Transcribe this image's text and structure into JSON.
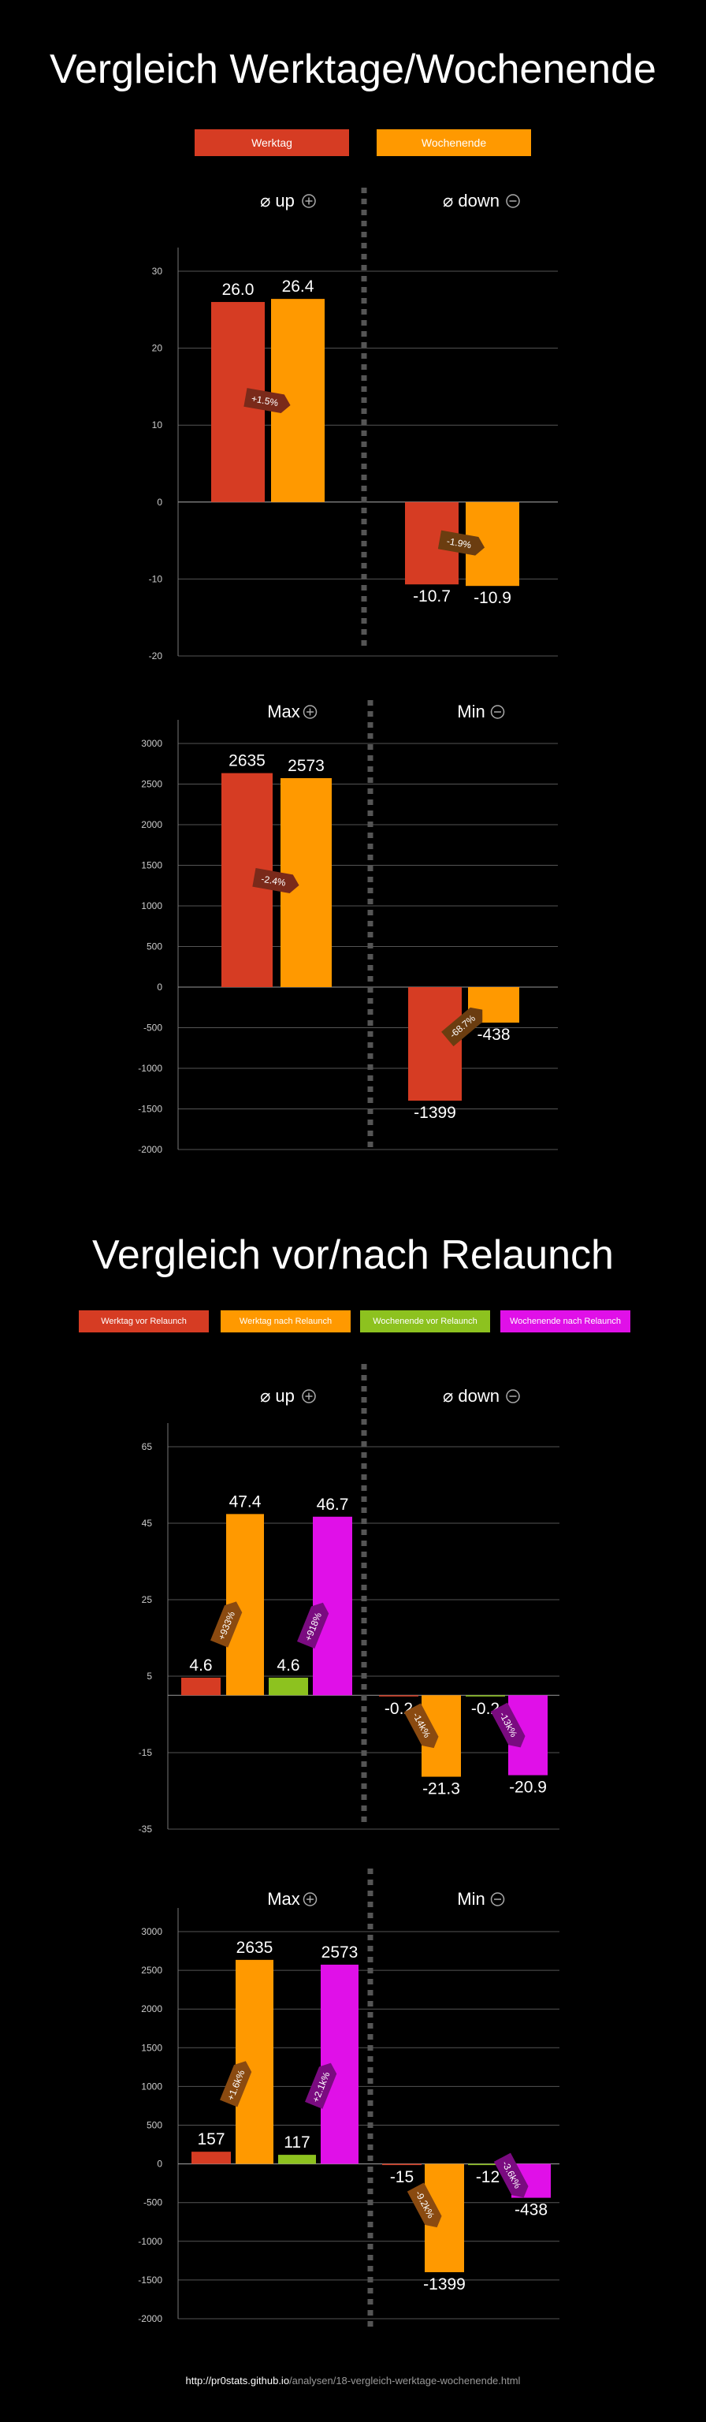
{
  "section1": {
    "title": "Vergleich Werktage/Wochenende",
    "legend": [
      {
        "label": "Werktag",
        "color": "#d63c23"
      },
      {
        "label": "Wochenende",
        "color": "#ff9900"
      }
    ]
  },
  "section2": {
    "title": "Vergleich vor/nach Relaunch",
    "legend": [
      {
        "label": "Werktag vor Relaunch",
        "color": "#d63c23"
      },
      {
        "label": "Werktag nach Relaunch",
        "color": "#ff9900"
      },
      {
        "label": "Wochenende vor Relaunch",
        "color": "#8dc21f"
      },
      {
        "label": "Wochenende nach Relaunch",
        "color": "#e010e8"
      }
    ]
  },
  "chart_data": [
    {
      "type": "bar",
      "group_labels": [
        "⌀ up",
        "⌀ down"
      ],
      "group_icons": [
        "plus-circle-icon",
        "minus-circle-icon"
      ],
      "series": [
        {
          "name": "Werktag",
          "color": "#d63c23",
          "values": [
            26.0,
            -10.7
          ],
          "labels": [
            "26.0",
            "-10.7"
          ]
        },
        {
          "name": "Wochenende",
          "color": "#ff9900",
          "values": [
            26.4,
            -10.9
          ],
          "labels": [
            "26.4",
            "-10.9"
          ]
        }
      ],
      "changes": [
        "+1.5%",
        "-1.9%"
      ],
      "yticks": [
        30,
        20,
        10,
        0,
        -10,
        -20
      ],
      "ylim": [
        -20,
        35
      ]
    },
    {
      "type": "bar",
      "group_labels": [
        "Max",
        "Min"
      ],
      "group_icons": [
        "plus-circle-icon",
        "minus-circle-icon"
      ],
      "series": [
        {
          "name": "Werktag",
          "color": "#d63c23",
          "values": [
            2635,
            -1399
          ],
          "labels": [
            "2635",
            "-1399"
          ]
        },
        {
          "name": "Wochenende",
          "color": "#ff9900",
          "values": [
            2573,
            -438
          ],
          "labels": [
            "2573",
            "-438"
          ]
        }
      ],
      "changes": [
        "-2.4%",
        "-68.7%"
      ],
      "yticks": [
        3000,
        2500,
        2000,
        1500,
        1000,
        500,
        0,
        -500,
        -1000,
        -1500,
        -2000
      ],
      "ylim": [
        -2000,
        3000
      ]
    },
    {
      "type": "bar",
      "group_labels": [
        "⌀ up",
        "⌀ down"
      ],
      "group_icons": [
        "plus-circle-icon",
        "minus-circle-icon"
      ],
      "series": [
        {
          "name": "Werktag vor Relaunch",
          "color": "#d63c23",
          "values": [
            4.6,
            -0.2
          ],
          "labels": [
            "4.6",
            "-0.2"
          ]
        },
        {
          "name": "Werktag nach Relaunch",
          "color": "#ff9900",
          "values": [
            47.4,
            -21.3
          ],
          "labels": [
            "47.4",
            "-21.3"
          ]
        },
        {
          "name": "Wochenende vor Relaunch",
          "color": "#8dc21f",
          "values": [
            4.6,
            -0.2
          ],
          "labels": [
            "4.6",
            "-0.2"
          ]
        },
        {
          "name": "Wochenende nach Relaunch",
          "color": "#e010e8",
          "values": [
            46.7,
            -20.9
          ],
          "labels": [
            "46.7",
            "-20.9"
          ]
        }
      ],
      "changes": [
        [
          "+933%",
          "+918%"
        ],
        [
          "-14k%",
          "-13k%"
        ]
      ],
      "yticks": [
        65,
        45,
        25,
        5,
        -15,
        -35
      ],
      "ylim": [
        -35,
        65
      ]
    },
    {
      "type": "bar",
      "group_labels": [
        "Max",
        "Min"
      ],
      "group_icons": [
        "plus-circle-icon",
        "minus-circle-icon"
      ],
      "series": [
        {
          "name": "Werktag vor Relaunch",
          "color": "#d63c23",
          "values": [
            157,
            -15
          ],
          "labels": [
            "157",
            "-15"
          ]
        },
        {
          "name": "Werktag nach Relaunch",
          "color": "#ff9900",
          "values": [
            2635,
            -1399
          ],
          "labels": [
            "2635",
            "-1399"
          ]
        },
        {
          "name": "Wochenende vor Relaunch",
          "color": "#8dc21f",
          "values": [
            117,
            -12
          ],
          "labels": [
            "117",
            "-12"
          ]
        },
        {
          "name": "Wochenende nach Relaunch",
          "color": "#e010e8",
          "values": [
            2573,
            -438
          ],
          "labels": [
            "2573",
            "-438"
          ]
        }
      ],
      "changes": [
        [
          "+1.6k%",
          "+2.1k%"
        ],
        [
          "-9.2k%",
          "-3.6k%"
        ]
      ],
      "yticks": [
        3000,
        2500,
        2000,
        1500,
        1000,
        500,
        0,
        -500,
        -1000,
        -1500,
        -2000
      ],
      "ylim": [
        -2000,
        3000
      ]
    }
  ],
  "footer": {
    "domain": "http://pr0stats.github.io",
    "path": "/analysen/18-vergleich-werktage-wochenende.html"
  }
}
